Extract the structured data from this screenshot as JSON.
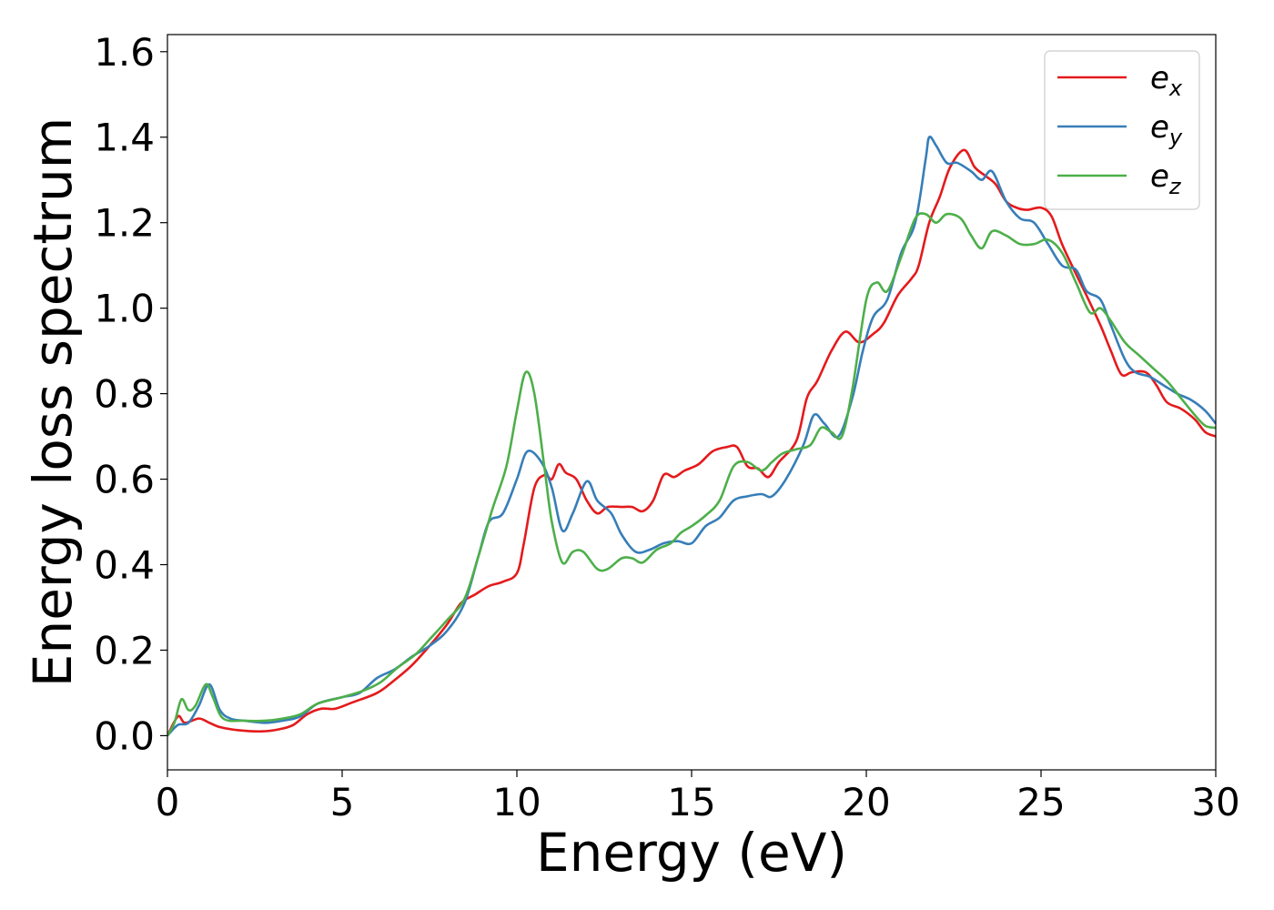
{
  "chart_data": {
    "type": "line",
    "title": "",
    "xlabel": "Energy (eV)",
    "ylabel": "Energy loss spectrum",
    "xlim": [
      0,
      30
    ],
    "ylim": [
      -0.08,
      1.64
    ],
    "x_ticks": [
      0,
      5,
      10,
      15,
      20,
      25,
      30
    ],
    "y_ticks": [
      0.0,
      0.2,
      0.4,
      0.6,
      0.8,
      1.0,
      1.2,
      1.4,
      1.6
    ],
    "x_tick_labels": [
      "0",
      "5",
      "10",
      "15",
      "20",
      "25",
      "30"
    ],
    "y_tick_labels": [
      "0.0",
      "0.2",
      "0.4",
      "0.6",
      "0.8",
      "1.0",
      "1.2",
      "1.4",
      "1.6"
    ],
    "grid": false,
    "legend_position": "top-right",
    "series": [
      {
        "name_base": "e",
        "name_sub": "x",
        "color": "#e41a1c",
        "points": [
          [
            0,
            0.0
          ],
          [
            0.3,
            0.045
          ],
          [
            0.5,
            0.03
          ],
          [
            0.9,
            0.04
          ],
          [
            1.2,
            0.03
          ],
          [
            1.5,
            0.02
          ],
          [
            2,
            0.013
          ],
          [
            2.7,
            0.01
          ],
          [
            3.2,
            0.015
          ],
          [
            3.6,
            0.025
          ],
          [
            4,
            0.05
          ],
          [
            4.4,
            0.063
          ],
          [
            4.8,
            0.063
          ],
          [
            5.3,
            0.078
          ],
          [
            6,
            0.1
          ],
          [
            6.5,
            0.13
          ],
          [
            7,
            0.165
          ],
          [
            7.5,
            0.21
          ],
          [
            8,
            0.26
          ],
          [
            8.4,
            0.31
          ],
          [
            8.8,
            0.33
          ],
          [
            9.2,
            0.35
          ],
          [
            9.6,
            0.36
          ],
          [
            10,
            0.38
          ],
          [
            10.2,
            0.45
          ],
          [
            10.5,
            0.58
          ],
          [
            10.8,
            0.61
          ],
          [
            11,
            0.6
          ],
          [
            11.2,
            0.635
          ],
          [
            11.4,
            0.615
          ],
          [
            11.7,
            0.6
          ],
          [
            12,
            0.55
          ],
          [
            12.3,
            0.52
          ],
          [
            12.6,
            0.535
          ],
          [
            13,
            0.535
          ],
          [
            13.3,
            0.535
          ],
          [
            13.6,
            0.525
          ],
          [
            13.9,
            0.55
          ],
          [
            14.2,
            0.61
          ],
          [
            14.5,
            0.605
          ],
          [
            14.8,
            0.62
          ],
          [
            15.2,
            0.635
          ],
          [
            15.6,
            0.665
          ],
          [
            16,
            0.675
          ],
          [
            16.3,
            0.675
          ],
          [
            16.6,
            0.63
          ],
          [
            16.9,
            0.625
          ],
          [
            17.2,
            0.605
          ],
          [
            17.5,
            0.64
          ],
          [
            18,
            0.69
          ],
          [
            18.3,
            0.79
          ],
          [
            18.6,
            0.83
          ],
          [
            19,
            0.9
          ],
          [
            19.4,
            0.945
          ],
          [
            19.8,
            0.92
          ],
          [
            20.2,
            0.94
          ],
          [
            20.5,
            0.965
          ],
          [
            20.9,
            1.03
          ],
          [
            21.3,
            1.07
          ],
          [
            21.5,
            1.1
          ],
          [
            21.8,
            1.2
          ],
          [
            22.1,
            1.26
          ],
          [
            22.4,
            1.33
          ],
          [
            22.8,
            1.37
          ],
          [
            23.1,
            1.33
          ],
          [
            23.4,
            1.31
          ],
          [
            23.7,
            1.29
          ],
          [
            24,
            1.25
          ],
          [
            24.3,
            1.235
          ],
          [
            24.6,
            1.23
          ],
          [
            25,
            1.235
          ],
          [
            25.3,
            1.215
          ],
          [
            25.6,
            1.15
          ],
          [
            26,
            1.08
          ],
          [
            26.3,
            1.03
          ],
          [
            26.7,
            0.96
          ],
          [
            27,
            0.9
          ],
          [
            27.3,
            0.845
          ],
          [
            27.6,
            0.85
          ],
          [
            28,
            0.85
          ],
          [
            28.3,
            0.82
          ],
          [
            28.6,
            0.78
          ],
          [
            29,
            0.765
          ],
          [
            29.4,
            0.74
          ],
          [
            29.7,
            0.71
          ],
          [
            30,
            0.7
          ]
        ]
      },
      {
        "name_base": "e",
        "name_sub": "y",
        "color": "#377eb8",
        "points": [
          [
            0,
            0.0
          ],
          [
            0.3,
            0.025
          ],
          [
            0.6,
            0.03
          ],
          [
            0.9,
            0.07
          ],
          [
            1.2,
            0.12
          ],
          [
            1.5,
            0.06
          ],
          [
            1.8,
            0.04
          ],
          [
            2.2,
            0.035
          ],
          [
            2.8,
            0.03
          ],
          [
            3.3,
            0.035
          ],
          [
            3.8,
            0.045
          ],
          [
            4.3,
            0.075
          ],
          [
            5,
            0.09
          ],
          [
            5.5,
            0.1
          ],
          [
            6,
            0.135
          ],
          [
            6.5,
            0.155
          ],
          [
            7,
            0.185
          ],
          [
            7.5,
            0.21
          ],
          [
            8,
            0.245
          ],
          [
            8.5,
            0.31
          ],
          [
            8.9,
            0.42
          ],
          [
            9.2,
            0.5
          ],
          [
            9.6,
            0.52
          ],
          [
            10,
            0.6
          ],
          [
            10.3,
            0.665
          ],
          [
            10.7,
            0.64
          ],
          [
            11,
            0.58
          ],
          [
            11.3,
            0.48
          ],
          [
            11.6,
            0.52
          ],
          [
            12,
            0.595
          ],
          [
            12.3,
            0.55
          ],
          [
            12.7,
            0.52
          ],
          [
            13,
            0.47
          ],
          [
            13.4,
            0.43
          ],
          [
            13.8,
            0.435
          ],
          [
            14.2,
            0.45
          ],
          [
            14.6,
            0.455
          ],
          [
            15,
            0.45
          ],
          [
            15.4,
            0.49
          ],
          [
            15.8,
            0.51
          ],
          [
            16.2,
            0.55
          ],
          [
            16.6,
            0.56
          ],
          [
            17,
            0.565
          ],
          [
            17.3,
            0.56
          ],
          [
            17.7,
            0.6
          ],
          [
            18.2,
            0.68
          ],
          [
            18.5,
            0.75
          ],
          [
            18.8,
            0.73
          ],
          [
            19.2,
            0.7
          ],
          [
            19.6,
            0.79
          ],
          [
            19.9,
            0.9
          ],
          [
            20.2,
            0.98
          ],
          [
            20.6,
            1.02
          ],
          [
            21,
            1.13
          ],
          [
            21.4,
            1.2
          ],
          [
            21.7,
            1.35
          ],
          [
            21.8,
            1.4
          ],
          [
            22,
            1.38
          ],
          [
            22.3,
            1.34
          ],
          [
            22.6,
            1.34
          ],
          [
            23,
            1.32
          ],
          [
            23.3,
            1.3
          ],
          [
            23.6,
            1.32
          ],
          [
            24,
            1.25
          ],
          [
            24.4,
            1.21
          ],
          [
            24.8,
            1.2
          ],
          [
            25.2,
            1.15
          ],
          [
            25.6,
            1.1
          ],
          [
            26,
            1.09
          ],
          [
            26.3,
            1.04
          ],
          [
            26.7,
            1.02
          ],
          [
            27,
            0.96
          ],
          [
            27.4,
            0.88
          ],
          [
            27.7,
            0.85
          ],
          [
            28.1,
            0.84
          ],
          [
            28.5,
            0.82
          ],
          [
            28.9,
            0.8
          ],
          [
            29.3,
            0.785
          ],
          [
            29.7,
            0.76
          ],
          [
            30,
            0.73
          ]
        ]
      },
      {
        "name_base": "e",
        "name_sub": "z",
        "color": "#4daf4a",
        "points": [
          [
            0,
            0.0
          ],
          [
            0.2,
            0.03
          ],
          [
            0.4,
            0.085
          ],
          [
            0.6,
            0.06
          ],
          [
            0.8,
            0.07
          ],
          [
            1.1,
            0.12
          ],
          [
            1.3,
            0.09
          ],
          [
            1.6,
            0.04
          ],
          [
            2.2,
            0.035
          ],
          [
            2.8,
            0.035
          ],
          [
            3.3,
            0.04
          ],
          [
            3.8,
            0.05
          ],
          [
            4.3,
            0.075
          ],
          [
            5,
            0.09
          ],
          [
            5.6,
            0.105
          ],
          [
            6.1,
            0.125
          ],
          [
            6.6,
            0.16
          ],
          [
            7.1,
            0.19
          ],
          [
            7.5,
            0.225
          ],
          [
            8,
            0.27
          ],
          [
            8.5,
            0.32
          ],
          [
            8.9,
            0.42
          ],
          [
            9.3,
            0.53
          ],
          [
            9.7,
            0.63
          ],
          [
            10,
            0.76
          ],
          [
            10.25,
            0.85
          ],
          [
            10.5,
            0.8
          ],
          [
            10.8,
            0.62
          ],
          [
            11,
            0.5
          ],
          [
            11.3,
            0.405
          ],
          [
            11.6,
            0.43
          ],
          [
            11.9,
            0.43
          ],
          [
            12.3,
            0.39
          ],
          [
            12.6,
            0.39
          ],
          [
            13,
            0.415
          ],
          [
            13.3,
            0.415
          ],
          [
            13.6,
            0.405
          ],
          [
            14,
            0.435
          ],
          [
            14.4,
            0.45
          ],
          [
            14.7,
            0.475
          ],
          [
            15,
            0.49
          ],
          [
            15.4,
            0.515
          ],
          [
            15.8,
            0.55
          ],
          [
            16.2,
            0.63
          ],
          [
            16.6,
            0.64
          ],
          [
            17,
            0.62
          ],
          [
            17.3,
            0.64
          ],
          [
            17.6,
            0.66
          ],
          [
            18,
            0.67
          ],
          [
            18.4,
            0.68
          ],
          [
            18.7,
            0.72
          ],
          [
            19,
            0.71
          ],
          [
            19.3,
            0.7
          ],
          [
            19.6,
            0.81
          ],
          [
            20,
            1.02
          ],
          [
            20.3,
            1.06
          ],
          [
            20.6,
            1.04
          ],
          [
            21,
            1.12
          ],
          [
            21.4,
            1.21
          ],
          [
            21.7,
            1.22
          ],
          [
            22,
            1.2
          ],
          [
            22.3,
            1.22
          ],
          [
            22.7,
            1.21
          ],
          [
            23,
            1.17
          ],
          [
            23.3,
            1.14
          ],
          [
            23.6,
            1.18
          ],
          [
            24,
            1.17
          ],
          [
            24.4,
            1.15
          ],
          [
            24.8,
            1.15
          ],
          [
            25.2,
            1.16
          ],
          [
            25.6,
            1.13
          ],
          [
            26,
            1.06
          ],
          [
            26.4,
            0.99
          ],
          [
            26.7,
            1.0
          ],
          [
            27,
            0.97
          ],
          [
            27.4,
            0.92
          ],
          [
            27.8,
            0.89
          ],
          [
            28.2,
            0.86
          ],
          [
            28.6,
            0.83
          ],
          [
            29,
            0.79
          ],
          [
            29.4,
            0.75
          ],
          [
            29.7,
            0.725
          ],
          [
            30,
            0.72
          ]
        ]
      }
    ]
  }
}
